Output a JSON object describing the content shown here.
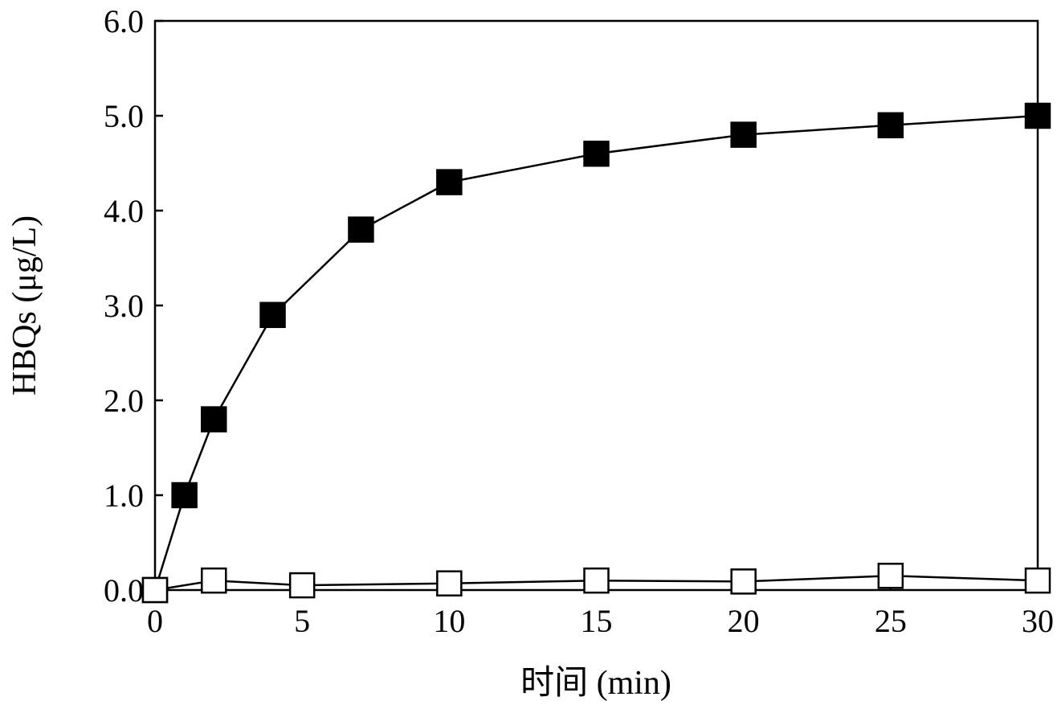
{
  "chart_data": {
    "type": "line",
    "title": "",
    "xlabel": "时间 (min)",
    "ylabel": "HBQs (μg/L)",
    "xlim": [
      0,
      30
    ],
    "ylim": [
      0,
      6
    ],
    "x_ticks": [
      "0",
      "5",
      "10",
      "15",
      "20",
      "25",
      "30"
    ],
    "y_ticks": [
      "0.0",
      "1.0",
      "2.0",
      "3.0",
      "4.0",
      "5.0",
      "6.0"
    ],
    "grid": false,
    "legend": "none",
    "series": [
      {
        "marker": "filled-square",
        "color": "#000000",
        "x": [
          0,
          1,
          2,
          4,
          7,
          10,
          15,
          20,
          25,
          30
        ],
        "y": [
          0.0,
          1.0,
          1.8,
          2.9,
          3.8,
          4.3,
          4.6,
          4.8,
          4.9,
          5.0
        ]
      },
      {
        "marker": "open-square",
        "color": "#000000",
        "x": [
          0,
          2,
          5,
          10,
          15,
          20,
          25,
          30
        ],
        "y": [
          0.0,
          0.1,
          0.05,
          0.07,
          0.1,
          0.09,
          0.15,
          0.1
        ]
      }
    ]
  }
}
